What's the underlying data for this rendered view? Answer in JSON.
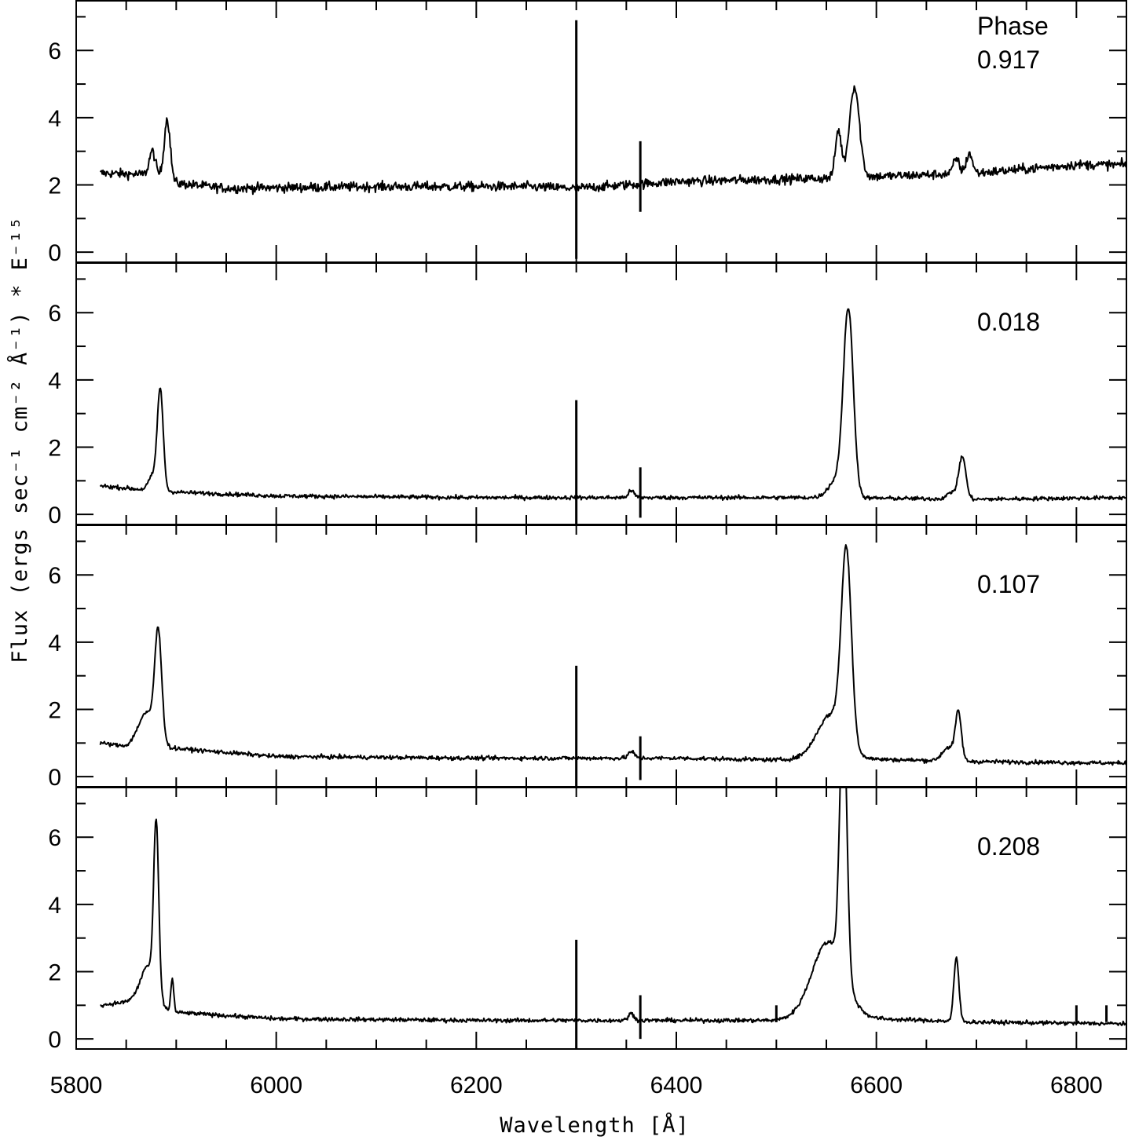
{
  "chart_data": {
    "type": "line",
    "xlabel": "Wavelength [Å]",
    "ylabel": "Flux (ergs sec⁻¹ cm⁻² Å⁻¹) * E⁻¹⁵",
    "xlim": [
      5800,
      6850
    ],
    "x_ticks": [
      5800,
      6000,
      6200,
      6400,
      6600,
      6800
    ],
    "ylim": [
      -0.3,
      7.5
    ],
    "y_ticks": [
      0,
      2,
      4,
      6
    ],
    "grid": false,
    "legend_header": "Phase",
    "panels": [
      {
        "phase_label": "0.917",
        "x_start": 5824,
        "x_end": 6850,
        "continuum": [
          [
            5824,
            2.35
          ],
          [
            5880,
            2.3
          ],
          [
            5900,
            2.05
          ],
          [
            5950,
            1.9
          ],
          [
            6100,
            1.95
          ],
          [
            6250,
            1.95
          ],
          [
            6300,
            1.9
          ],
          [
            6400,
            2.1
          ],
          [
            6550,
            2.2
          ],
          [
            6600,
            2.25
          ],
          [
            6700,
            2.35
          ],
          [
            6800,
            2.6
          ],
          [
            6850,
            2.6
          ]
        ],
        "noise": 0.14,
        "lines": [
          {
            "center": 5876,
            "width": 3,
            "height": 0.7
          },
          {
            "center": 5891,
            "width": 3,
            "height": 1.8
          },
          {
            "center": 6562,
            "width": 3,
            "height": 1.4
          },
          {
            "center": 6578,
            "width": 5,
            "height": 2.7
          },
          {
            "center": 6680,
            "width": 3,
            "height": 0.45
          },
          {
            "center": 6693,
            "width": 3,
            "height": 0.6
          }
        ],
        "spikes": [
          {
            "x": 6300,
            "min": -0.2,
            "max": 6.9
          },
          {
            "x": 6364,
            "min": 1.2,
            "max": 3.3
          }
        ]
      },
      {
        "phase_label": "0.018",
        "x_start": 5824,
        "x_end": 6850,
        "continuum": [
          [
            5824,
            0.85
          ],
          [
            5880,
            0.7
          ],
          [
            5910,
            0.65
          ],
          [
            6000,
            0.55
          ],
          [
            6200,
            0.5
          ],
          [
            6400,
            0.5
          ],
          [
            6550,
            0.5
          ],
          [
            6700,
            0.45
          ],
          [
            6850,
            0.5
          ]
        ],
        "noise": 0.06,
        "lines": [
          {
            "center": 5884,
            "width": 3,
            "height": 3.0
          },
          {
            "center": 5876,
            "width": 4,
            "height": 0.4
          },
          {
            "center": 6572,
            "width": 5,
            "height": 5.5
          },
          {
            "center": 6560,
            "width": 8,
            "height": 0.5
          },
          {
            "center": 6686,
            "width": 3.5,
            "height": 1.25
          },
          {
            "center": 6676,
            "width": 5,
            "height": 0.2
          },
          {
            "center": 6355,
            "width": 3,
            "height": 0.2
          }
        ],
        "spikes": [
          {
            "x": 6300,
            "min": -0.3,
            "max": 3.4
          },
          {
            "x": 6364,
            "min": -0.1,
            "max": 1.4
          }
        ]
      },
      {
        "phase_label": "0.107",
        "x_start": 5824,
        "x_end": 6850,
        "continuum": [
          [
            5824,
            1.0
          ],
          [
            5850,
            0.9
          ],
          [
            5870,
            1.1
          ],
          [
            5895,
            0.85
          ],
          [
            6000,
            0.6
          ],
          [
            6200,
            0.55
          ],
          [
            6400,
            0.55
          ],
          [
            6500,
            0.5
          ],
          [
            6550,
            0.55
          ],
          [
            6700,
            0.45
          ],
          [
            6850,
            0.4
          ]
        ],
        "noise": 0.06,
        "lines": [
          {
            "center": 5882,
            "width": 3.5,
            "height": 3.2
          },
          {
            "center": 5870,
            "width": 8,
            "height": 0.8
          },
          {
            "center": 6570,
            "width": 5,
            "height": 5.6
          },
          {
            "center": 6555,
            "width": 14,
            "height": 1.3
          },
          {
            "center": 6682,
            "width": 3,
            "height": 1.4
          },
          {
            "center": 6672,
            "width": 6,
            "height": 0.4
          },
          {
            "center": 6355,
            "width": 3,
            "height": 0.2
          }
        ],
        "spikes": [
          {
            "x": 6300,
            "min": -0.3,
            "max": 3.3
          },
          {
            "x": 6364,
            "min": -0.1,
            "max": 1.2
          }
        ]
      },
      {
        "phase_label": "0.208",
        "x_start": 5824,
        "x_end": 6850,
        "continuum": [
          [
            5824,
            1.0
          ],
          [
            5850,
            1.1
          ],
          [
            5870,
            1.4
          ],
          [
            5893,
            0.8
          ],
          [
            5920,
            0.75
          ],
          [
            6000,
            0.6
          ],
          [
            6200,
            0.55
          ],
          [
            6400,
            0.55
          ],
          [
            6500,
            0.55
          ],
          [
            6540,
            0.7
          ],
          [
            6600,
            0.6
          ],
          [
            6700,
            0.5
          ],
          [
            6850,
            0.45
          ]
        ],
        "noise": 0.06,
        "lines": [
          {
            "center": 5880,
            "width": 2.5,
            "height": 5.0
          },
          {
            "center": 5872,
            "width": 7,
            "height": 0.8
          },
          {
            "center": 5896,
            "width": 1.5,
            "height": 1.0
          },
          {
            "center": 6567,
            "width": 3.5,
            "height": 8.0
          },
          {
            "center": 6552,
            "width": 16,
            "height": 2.2
          },
          {
            "center": 6680,
            "width": 2.5,
            "height": 1.9
          },
          {
            "center": 6355,
            "width": 3,
            "height": 0.2
          }
        ],
        "spikes": [
          {
            "x": 6300,
            "min": -0.3,
            "max": 2.95
          },
          {
            "x": 6364,
            "min": 0.0,
            "max": 1.3
          },
          {
            "x": 6500,
            "min": 0.5,
            "max": 1.0
          },
          {
            "x": 6800,
            "min": 0.5,
            "max": 1.0
          },
          {
            "x": 6830,
            "min": 0.5,
            "max": 1.0
          }
        ]
      }
    ]
  }
}
